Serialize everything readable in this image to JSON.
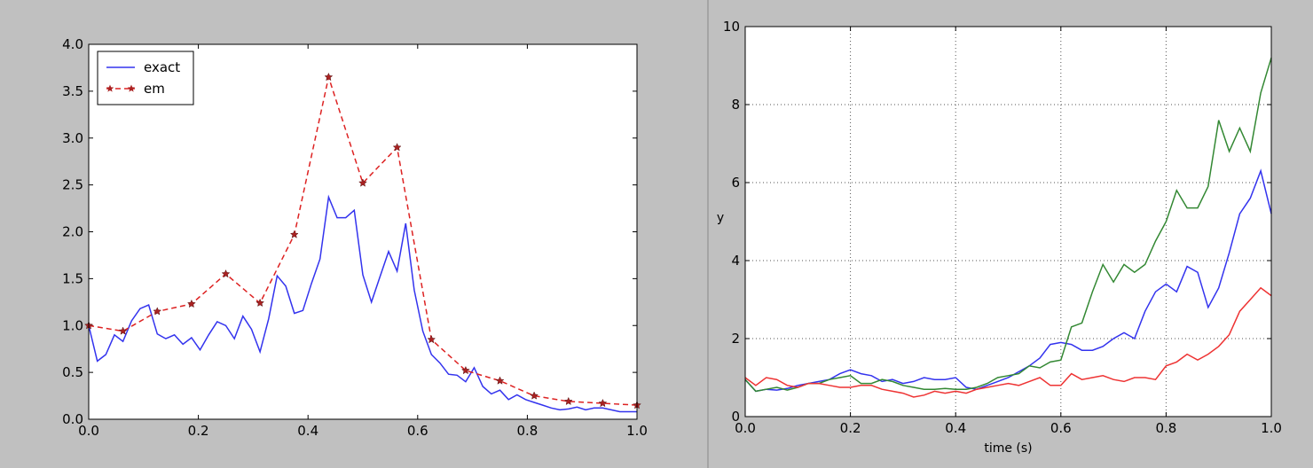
{
  "chart_data": [
    {
      "type": "line",
      "series": [
        {
          "name": "exact",
          "color": "#3333ee",
          "dash": false,
          "marker": false,
          "x": [
            0,
            0.015625,
            0.03125,
            0.046875,
            0.0625,
            0.078125,
            0.09375,
            0.109375,
            0.125,
            0.140625,
            0.15625,
            0.171875,
            0.1875,
            0.203125,
            0.21875,
            0.234375,
            0.25,
            0.265625,
            0.28125,
            0.296875,
            0.3125,
            0.328125,
            0.34375,
            0.359375,
            0.375,
            0.390625,
            0.40625,
            0.421875,
            0.4375,
            0.453125,
            0.46875,
            0.484375,
            0.5,
            0.515625,
            0.53125,
            0.546875,
            0.5625,
            0.578125,
            0.59375,
            0.609375,
            0.625,
            0.640625,
            0.65625,
            0.671875,
            0.6875,
            0.703125,
            0.71875,
            0.734375,
            0.75,
            0.765625,
            0.78125,
            0.796875,
            0.8125,
            0.828125,
            0.84375,
            0.859375,
            0.875,
            0.890625,
            0.90625,
            0.921875,
            0.9375,
            0.953125,
            0.96875,
            0.984375,
            1
          ],
          "values": [
            1.0,
            0.62,
            0.69,
            0.9,
            0.83,
            1.05,
            1.18,
            1.22,
            0.91,
            0.86,
            0.9,
            0.8,
            0.87,
            0.74,
            0.9,
            1.04,
            1.0,
            0.86,
            1.1,
            0.96,
            0.72,
            1.07,
            1.53,
            1.42,
            1.13,
            1.16,
            1.45,
            1.71,
            2.37,
            2.15,
            2.15,
            2.23,
            1.54,
            1.25,
            1.52,
            1.79,
            1.58,
            2.09,
            1.38,
            0.94,
            0.69,
            0.6,
            0.48,
            0.47,
            0.4,
            0.55,
            0.35,
            0.27,
            0.31,
            0.21,
            0.26,
            0.21,
            0.18,
            0.15,
            0.12,
            0.1,
            0.11,
            0.13,
            0.1,
            0.12,
            0.12,
            0.1,
            0.08,
            0.08,
            0.08
          ]
        },
        {
          "name": "em",
          "color": "#dd2222",
          "dash": true,
          "marker": true,
          "x": [
            0,
            0.0625,
            0.125,
            0.1875,
            0.25,
            0.3125,
            0.375,
            0.4375,
            0.5,
            0.5625,
            0.625,
            0.6875,
            0.75,
            0.8125,
            0.875,
            0.9375,
            1
          ],
          "values": [
            1.0,
            0.94,
            1.15,
            1.23,
            1.55,
            1.24,
            1.97,
            3.65,
            2.52,
            2.9,
            0.85,
            0.52,
            0.41,
            0.25,
            0.19,
            0.17,
            0.15
          ]
        }
      ],
      "xlim": [
        0,
        1
      ],
      "ylim": [
        0,
        4
      ],
      "xticks": [
        {
          "value": 0,
          "label": "0.0"
        },
        0.2,
        0.4,
        0.6,
        0.8,
        {
          "value": 1,
          "label": "1.0"
        }
      ],
      "yticks": [
        {
          "value": 0,
          "label": "0.0"
        },
        0.5,
        {
          "value": 1,
          "label": "1.0"
        },
        1.5,
        {
          "value": 2,
          "label": "2.0"
        },
        2.5,
        {
          "value": 3,
          "label": "3.0"
        },
        3.5,
        {
          "value": 4,
          "label": "4.0"
        }
      ],
      "grid": false,
      "legend": "upper left"
    },
    {
      "type": "line",
      "xlabel": "time (s)",
      "ylabel": "y",
      "x": [
        0,
        0.02,
        0.04,
        0.06,
        0.08,
        0.1,
        0.12,
        0.14,
        0.16,
        0.18,
        0.2,
        0.22,
        0.24,
        0.26,
        0.28,
        0.3,
        0.32,
        0.34,
        0.36,
        0.38,
        0.4,
        0.42,
        0.44,
        0.46,
        0.48,
        0.5,
        0.52,
        0.54,
        0.56,
        0.58,
        0.6,
        0.62,
        0.64,
        0.66,
        0.68,
        0.7,
        0.72,
        0.74,
        0.76,
        0.78,
        0.8,
        0.82,
        0.84,
        0.86,
        0.88,
        0.9,
        0.92,
        0.94,
        0.96,
        0.98,
        1
      ],
      "series": [
        {
          "color": "#3333ee",
          "values": [
            0.95,
            0.65,
            0.7,
            0.68,
            0.72,
            0.8,
            0.85,
            0.9,
            0.95,
            1.1,
            1.2,
            1.1,
            1.05,
            0.9,
            0.95,
            0.85,
            0.9,
            1.0,
            0.95,
            0.95,
            1.0,
            0.75,
            0.7,
            0.8,
            0.9,
            1.0,
            1.15,
            1.3,
            1.5,
            1.85,
            1.9,
            1.85,
            1.7,
            1.7,
            1.8,
            2.0,
            2.15,
            2.0,
            2.7,
            3.2,
            3.4,
            3.2,
            3.85,
            3.7,
            2.8,
            3.3,
            4.2,
            5.2,
            5.6,
            6.3,
            5.2
          ]
        },
        {
          "color": "#338833",
          "values": [
            0.95,
            0.65,
            0.7,
            0.75,
            0.68,
            0.75,
            0.85,
            0.85,
            0.95,
            1.0,
            1.05,
            0.85,
            0.85,
            0.95,
            0.9,
            0.8,
            0.75,
            0.7,
            0.7,
            0.72,
            0.7,
            0.7,
            0.75,
            0.85,
            1.0,
            1.05,
            1.1,
            1.3,
            1.25,
            1.4,
            1.45,
            2.3,
            2.4,
            3.2,
            3.9,
            3.45,
            3.9,
            3.7,
            3.9,
            4.5,
            5.0,
            5.8,
            5.35,
            5.35,
            5.9,
            7.6,
            6.8,
            7.4,
            6.8,
            8.3,
            9.2
          ]
        },
        {
          "color": "#ee3333",
          "values": [
            1.0,
            0.8,
            1.0,
            0.95,
            0.8,
            0.75,
            0.85,
            0.85,
            0.8,
            0.75,
            0.75,
            0.8,
            0.8,
            0.7,
            0.65,
            0.6,
            0.5,
            0.55,
            0.65,
            0.6,
            0.65,
            0.6,
            0.7,
            0.75,
            0.8,
            0.85,
            0.8,
            0.9,
            1.0,
            0.8,
            0.8,
            1.1,
            0.95,
            1.0,
            1.05,
            0.95,
            0.9,
            1.0,
            1.0,
            0.95,
            1.3,
            1.4,
            1.6,
            1.45,
            1.6,
            1.8,
            2.1,
            2.7,
            3.0,
            3.3,
            3.1
          ]
        }
      ],
      "xlim": [
        0,
        1
      ],
      "ylim": [
        0,
        10
      ],
      "xticks": [
        {
          "value": 0,
          "label": "0.0"
        },
        0.2,
        0.4,
        0.6,
        0.8,
        {
          "value": 1,
          "label": "1.0"
        }
      ],
      "yticks": [
        0,
        2,
        4,
        6,
        8,
        10
      ],
      "grid": true
    }
  ]
}
